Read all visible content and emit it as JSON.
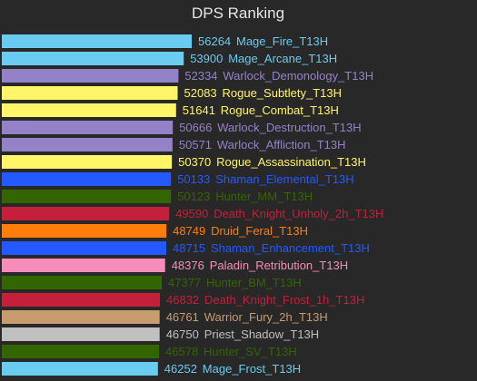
{
  "chart_data": {
    "type": "bar",
    "orientation": "horizontal",
    "title": "DPS  Ranking",
    "xlabel": "",
    "ylabel": "",
    "grid": false,
    "xlim": [
      0,
      56264
    ],
    "colors": {
      "Mage": "#69ccf0",
      "Warlock": "#9482c9",
      "Rogue": "#fff569",
      "Shaman": "#2459ff",
      "Hunter": "#336600",
      "Death Knight": "#c41f3b",
      "Druid": "#ff7d0a",
      "Paladin": "#f58cba",
      "Warrior": "#c79c6e",
      "Priest": "#c0c0c0"
    },
    "bars": [
      {
        "value": 56264,
        "label": "Mage_Fire_T13H",
        "class": "Mage"
      },
      {
        "value": 53900,
        "label": "Mage_Arcane_T13H",
        "class": "Mage"
      },
      {
        "value": 52334,
        "label": "Warlock_Demonology_T13H",
        "class": "Warlock"
      },
      {
        "value": 52083,
        "label": "Rogue_Subtlety_T13H",
        "class": "Rogue"
      },
      {
        "value": 51641,
        "label": "Rogue_Combat_T13H",
        "class": "Rogue"
      },
      {
        "value": 50666,
        "label": "Warlock_Destruction_T13H",
        "class": "Warlock"
      },
      {
        "value": 50571,
        "label": "Warlock_Affliction_T13H",
        "class": "Warlock"
      },
      {
        "value": 50370,
        "label": "Rogue_Assassination_T13H",
        "class": "Rogue"
      },
      {
        "value": 50133,
        "label": "Shaman_Elemental_T13H",
        "class": "Shaman"
      },
      {
        "value": 50123,
        "label": "Hunter_MM_T13H",
        "class": "Hunter"
      },
      {
        "value": 49590,
        "label": "Death_Knight_Unholy_2h_T13H",
        "class": "Death Knight"
      },
      {
        "value": 48749,
        "label": "Druid_Feral_T13H",
        "class": "Druid"
      },
      {
        "value": 48715,
        "label": "Shaman_Enhancement_T13H",
        "class": "Shaman"
      },
      {
        "value": 48376,
        "label": "Paladin_Retribution_T13H",
        "class": "Paladin"
      },
      {
        "value": 47377,
        "label": "Hunter_BM_T13H",
        "class": "Hunter"
      },
      {
        "value": 46832,
        "label": "Death_Knight_Frost_1h_T13H",
        "class": "Death Knight"
      },
      {
        "value": 46761,
        "label": "Warrior_Fury_2h_T13H",
        "class": "Warrior"
      },
      {
        "value": 46750,
        "label": "Priest_Shadow_T13H",
        "class": "Priest"
      },
      {
        "value": 46578,
        "label": "Hunter_SV_T13H",
        "class": "Hunter"
      },
      {
        "value": 46252,
        "label": "Mage_Frost_T13H",
        "class": "Mage"
      }
    ]
  }
}
